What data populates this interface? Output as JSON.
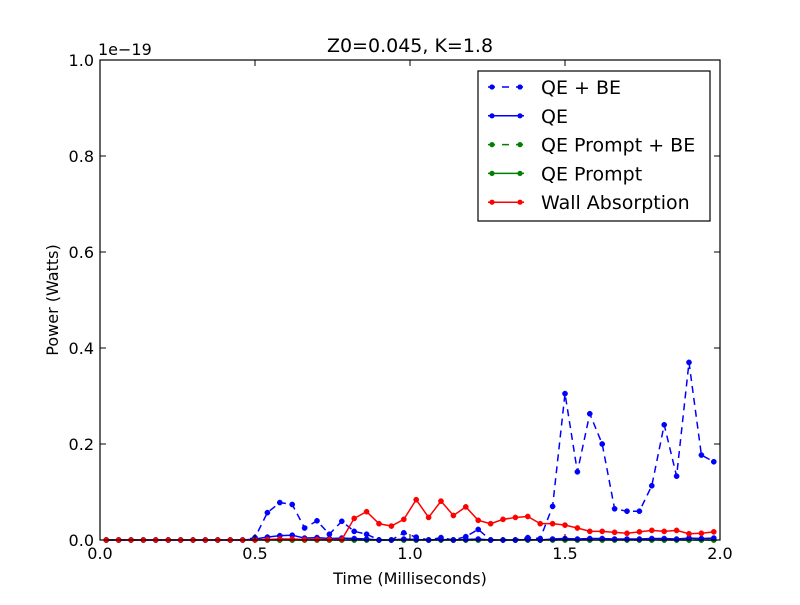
{
  "chart_data": {
    "type": "line",
    "title": "Z0=0.045, K=1.8",
    "xlabel": "Time (Milliseconds)",
    "ylabel": "Power (Watts)",
    "y_offset_label": "1e−19",
    "xlim": [
      0.0,
      2.0
    ],
    "ylim": [
      0.0,
      1.0
    ],
    "y_scale_factor": 1e-19,
    "x_ticks": [
      0.0,
      0.5,
      1.0,
      1.5,
      2.0
    ],
    "x_tick_labels": [
      "0.0",
      "0.5",
      "1.0",
      "1.5",
      "2.0"
    ],
    "y_ticks": [
      0.0,
      0.2,
      0.4,
      0.6,
      0.8,
      1.0
    ],
    "y_tick_labels": [
      "0.0",
      "0.2",
      "0.4",
      "0.6",
      "0.8",
      "1.0"
    ],
    "grid": false,
    "legend_position": "top-right",
    "series": [
      {
        "name": "QE + BE",
        "color": "#0000ff",
        "line_style": "dashed",
        "marker": "dot",
        "x": [
          0.02,
          0.06,
          0.1,
          0.14,
          0.18,
          0.22,
          0.26,
          0.3,
          0.34,
          0.38,
          0.42,
          0.46,
          0.5,
          0.54,
          0.58,
          0.62,
          0.66,
          0.7,
          0.74,
          0.78,
          0.82,
          0.86,
          0.9,
          0.94,
          0.98,
          1.02,
          1.06,
          1.1,
          1.14,
          1.18,
          1.22,
          1.26,
          1.3,
          1.34,
          1.38,
          1.42,
          1.46,
          1.5,
          1.54,
          1.58,
          1.62,
          1.66,
          1.7,
          1.74,
          1.78,
          1.82,
          1.86,
          1.9,
          1.94,
          1.98
        ],
        "y": [
          0,
          0,
          0,
          0,
          0,
          0,
          0,
          0,
          0,
          0,
          0,
          0,
          0.005,
          0.057,
          0.078,
          0.074,
          0.025,
          0.04,
          0.012,
          0.039,
          0.018,
          0.012,
          0,
          0,
          0.015,
          0.006,
          0,
          0.005,
          0,
          0.007,
          0.022,
          0,
          0,
          0,
          0.005,
          0.003,
          0.07,
          0.305,
          0.142,
          0.263,
          0.2,
          0.065,
          0.06,
          0.06,
          0.113,
          0.24,
          0.133,
          0.37,
          0.177,
          0.163
        ]
      },
      {
        "name": "QE",
        "color": "#0000ff",
        "line_style": "solid",
        "marker": "dot",
        "x": [
          0.02,
          0.06,
          0.1,
          0.14,
          0.18,
          0.22,
          0.26,
          0.3,
          0.34,
          0.38,
          0.42,
          0.46,
          0.5,
          0.54,
          0.58,
          0.62,
          0.66,
          0.7,
          0.74,
          0.78,
          0.82,
          0.86,
          0.9,
          0.94,
          0.98,
          1.02,
          1.06,
          1.1,
          1.14,
          1.18,
          1.22,
          1.26,
          1.3,
          1.34,
          1.38,
          1.42,
          1.46,
          1.5,
          1.54,
          1.58,
          1.62,
          1.66,
          1.7,
          1.74,
          1.78,
          1.82,
          1.86,
          1.9,
          1.94,
          1.98
        ],
        "y": [
          0,
          0,
          0,
          0,
          0,
          0,
          0,
          0,
          0,
          0,
          0,
          0,
          0.002,
          0.006,
          0.009,
          0.01,
          0.004,
          0.005,
          0.003,
          0.004,
          0.003,
          0.002,
          0,
          0,
          0.002,
          0.001,
          0,
          0.001,
          0,
          0.001,
          0.002,
          0,
          0,
          0,
          0.001,
          0,
          0.002,
          0.003,
          0.002,
          0.003,
          0.003,
          0.002,
          0.002,
          0.002,
          0.003,
          0.003,
          0.002,
          0.004,
          0.003,
          0.004
        ]
      },
      {
        "name": "QE Prompt + BE",
        "color": "#008000",
        "line_style": "dashed",
        "marker": "dot",
        "x": [
          0.02,
          0.06,
          0.1,
          0.14,
          0.18,
          0.22,
          0.26,
          0.3,
          0.34,
          0.38,
          0.42,
          0.46,
          0.5,
          0.54,
          0.58,
          0.62,
          0.66,
          0.7,
          0.74,
          0.78,
          0.82,
          0.86,
          0.9,
          0.94,
          0.98,
          1.02,
          1.06,
          1.1,
          1.14,
          1.18,
          1.22,
          1.26,
          1.3,
          1.34,
          1.38,
          1.42,
          1.46,
          1.5,
          1.54,
          1.58,
          1.62,
          1.66,
          1.7,
          1.74,
          1.78,
          1.82,
          1.86,
          1.9,
          1.94,
          1.98
        ],
        "y": [
          0,
          0,
          0,
          0,
          0,
          0,
          0,
          0,
          0,
          0,
          0,
          0,
          0,
          0,
          0,
          0,
          0,
          0,
          0,
          0,
          0,
          0,
          0,
          0,
          0,
          0,
          0,
          0,
          0,
          0,
          0,
          0,
          0,
          0,
          0,
          0,
          0,
          0,
          0,
          0,
          0,
          0,
          0,
          0,
          0,
          0,
          0,
          0,
          0,
          0
        ]
      },
      {
        "name": "QE Prompt",
        "color": "#008000",
        "line_style": "solid",
        "marker": "dot",
        "x": [
          0.02,
          0.06,
          0.1,
          0.14,
          0.18,
          0.22,
          0.26,
          0.3,
          0.34,
          0.38,
          0.42,
          0.46,
          0.5,
          0.54,
          0.58,
          0.62,
          0.66,
          0.7,
          0.74,
          0.78,
          0.82,
          0.86,
          0.9,
          0.94,
          0.98,
          1.02,
          1.06,
          1.1,
          1.14,
          1.18,
          1.22,
          1.26,
          1.3,
          1.34,
          1.38,
          1.42,
          1.46,
          1.5,
          1.54,
          1.58,
          1.62,
          1.66,
          1.7,
          1.74,
          1.78,
          1.82,
          1.86,
          1.9,
          1.94,
          1.98
        ],
        "y": [
          0,
          0,
          0,
          0,
          0,
          0,
          0,
          0,
          0,
          0,
          0,
          0,
          0,
          0,
          0,
          0,
          0,
          0,
          0,
          0,
          0,
          0,
          0,
          0,
          0,
          0,
          0,
          0,
          0,
          0,
          0,
          0,
          0,
          0,
          0,
          0,
          0,
          0,
          0,
          0,
          0,
          0,
          0,
          0,
          0,
          0,
          0,
          0,
          0,
          0
        ]
      },
      {
        "name": "Wall Absorption",
        "color": "#ff0000",
        "line_style": "solid",
        "marker": "dot",
        "x": [
          0.02,
          0.06,
          0.1,
          0.14,
          0.18,
          0.22,
          0.26,
          0.3,
          0.34,
          0.38,
          0.42,
          0.46,
          0.5,
          0.54,
          0.58,
          0.62,
          0.66,
          0.7,
          0.74,
          0.78,
          0.82,
          0.86,
          0.9,
          0.94,
          0.98,
          1.02,
          1.06,
          1.1,
          1.14,
          1.18,
          1.22,
          1.26,
          1.3,
          1.34,
          1.38,
          1.42,
          1.46,
          1.5,
          1.54,
          1.58,
          1.62,
          1.66,
          1.7,
          1.74,
          1.78,
          1.82,
          1.86,
          1.9,
          1.94,
          1.98
        ],
        "y": [
          0,
          0,
          0,
          0,
          0,
          0,
          0,
          0,
          0,
          0,
          0,
          0,
          0,
          0.001,
          0.002,
          0.002,
          0.001,
          0.001,
          0.001,
          0.001,
          0.045,
          0.059,
          0.034,
          0.029,
          0.043,
          0.084,
          0.047,
          0.081,
          0.051,
          0.069,
          0.041,
          0.034,
          0.043,
          0.047,
          0.049,
          0.034,
          0.034,
          0.031,
          0.025,
          0.018,
          0.018,
          0.016,
          0.014,
          0.017,
          0.02,
          0.018,
          0.02,
          0.013,
          0.014,
          0.017
        ]
      }
    ]
  }
}
